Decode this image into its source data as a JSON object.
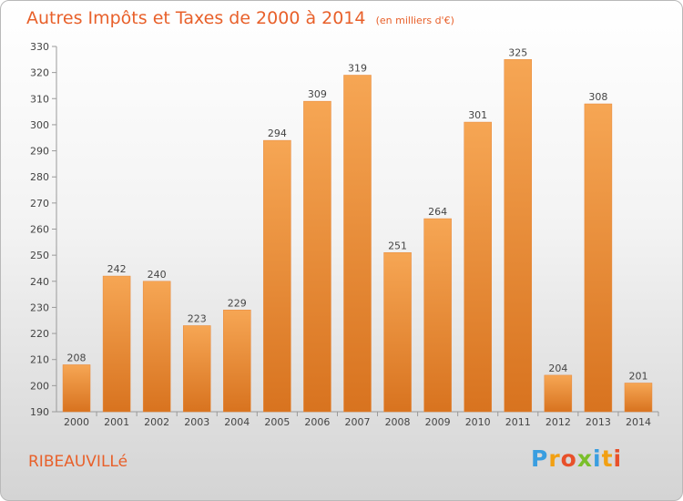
{
  "header": {
    "title": "Autres Impôts et Taxes de 2000 à 2014",
    "unit": "(en milliers d'€)"
  },
  "footer": {
    "city": "RIBEAUVILLé",
    "logo": {
      "letters": [
        "P",
        "r",
        "o",
        "x",
        "i",
        "t",
        "i"
      ],
      "colors": [
        "#3a9ee0",
        "#f2a012",
        "#e8502a",
        "#7abf2a",
        "#3a9ee0",
        "#f2a012",
        "#e8502a"
      ]
    }
  },
  "chart_data": {
    "type": "bar",
    "categories": [
      "2000",
      "2001",
      "2002",
      "2003",
      "2004",
      "2005",
      "2006",
      "2007",
      "2008",
      "2009",
      "2010",
      "2011",
      "2012",
      "2013",
      "2014"
    ],
    "values": [
      208,
      242,
      240,
      223,
      229,
      294,
      309,
      319,
      251,
      264,
      301,
      325,
      204,
      308,
      201
    ],
    "title": "Autres Impôts et Taxes de 2000 à 2014",
    "ylabel": "(en milliers d'€)",
    "ylim": [
      190,
      330
    ],
    "yticks": [
      190,
      200,
      210,
      220,
      230,
      240,
      250,
      260,
      270,
      280,
      290,
      300,
      310,
      320,
      330
    ],
    "grid": false,
    "bar_color": "#f0913a",
    "data_labels": true
  }
}
